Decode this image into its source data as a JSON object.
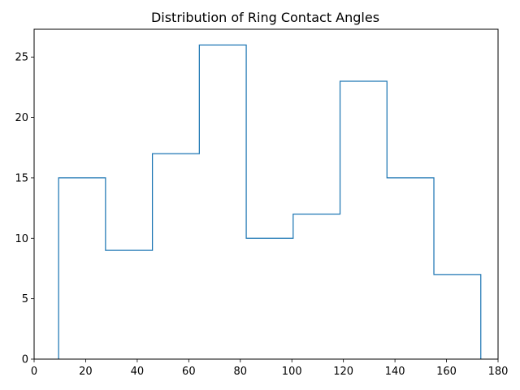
{
  "chart_data": {
    "type": "histogram",
    "title": "Distribution of Ring Contact Angles",
    "xlabel": "",
    "ylabel": "",
    "bin_edges": [
      9.5,
      27.7,
      45.9,
      64.1,
      82.3,
      100.5,
      118.7,
      136.9,
      155.1,
      173.3
    ],
    "values": [
      15,
      9,
      17,
      26,
      10,
      12,
      23,
      15,
      7
    ],
    "xlim": [
      0,
      180
    ],
    "ylim": [
      0,
      27.3
    ],
    "xticks": [
      0,
      20,
      40,
      60,
      80,
      100,
      120,
      140,
      160,
      180
    ],
    "yticks": [
      0,
      5,
      10,
      15,
      20,
      25
    ],
    "histtype": "step",
    "line_color": "#1f77b4",
    "grid": false,
    "legend": "none"
  }
}
